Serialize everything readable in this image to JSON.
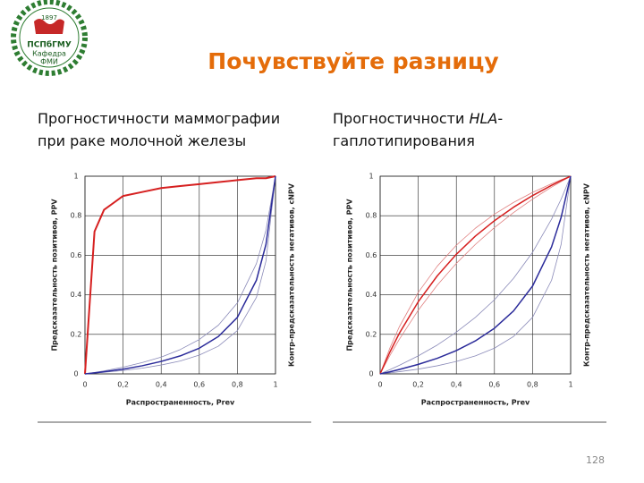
{
  "title": "Почувствуйте разницу",
  "logo": {
    "year": "1897",
    "lines": [
      "ПСПбГМУ",
      "Кафедра",
      "ФМИ"
    ]
  },
  "page_number": "128",
  "chart_data": [
    {
      "type": "line",
      "subtitle": [
        [
          "Прогностичности маммографии"
        ],
        [
          "при раке молочной железы"
        ]
      ],
      "xlabel": "Распространенность, Prev",
      "ylabel": "Предсказательность позитивов, PPV",
      "y2label": "Контр-предсказательность негативов, cNPV",
      "x": [
        0,
        0.05,
        0.1,
        0.2,
        0.3,
        0.4,
        0.5,
        0.6,
        0.7,
        0.8,
        0.9,
        0.95,
        1
      ],
      "xlim": [
        0,
        1
      ],
      "ylim": [
        0,
        1
      ],
      "xticks": [
        0,
        {
          "value": 0.2,
          "label": "0,2"
        },
        {
          "value": 0.4,
          "label": "0,4"
        },
        {
          "value": 0.6,
          "label": "0,6"
        },
        {
          "value": 0.8,
          "label": "0,8"
        },
        1
      ],
      "yticks": [
        0,
        0.2,
        0.4,
        0.6,
        0.8,
        1
      ],
      "grid": true,
      "series": [
        {
          "color": "#d62020",
          "width": 2,
          "values": [
            0,
            0.72,
            0.83,
            0.9,
            0.92,
            0.94,
            0.95,
            0.96,
            0.97,
            0.98,
            0.99,
            0.99,
            1
          ]
        },
        {
          "color": "#8a8ab8",
          "width": 0.8,
          "values": [
            0,
            0.007,
            0.015,
            0.034,
            0.057,
            0.085,
            0.123,
            0.174,
            0.246,
            0.359,
            0.558,
            0.727,
            1
          ]
        },
        {
          "color": "#8a8ab8",
          "width": 0.8,
          "values": [
            0,
            0.004,
            0.008,
            0.017,
            0.029,
            0.045,
            0.065,
            0.095,
            0.14,
            0.219,
            0.387,
            0.571,
            1
          ]
        },
        {
          "color": "#2b2b9a",
          "width": 1.5,
          "values": [
            0,
            0.005,
            0.011,
            0.024,
            0.041,
            0.063,
            0.091,
            0.13,
            0.189,
            0.286,
            0.474,
            0.655,
            1
          ]
        }
      ]
    },
    {
      "type": "line",
      "subtitle": [
        [
          "Прогностичности ",
          "HLA",
          "-"
        ],
        [
          "гаплотипирования"
        ]
      ],
      "xlabel": "Распространенность, Prev",
      "ylabel": "Предсказательность позитивов, PPV",
      "y2label": "Контр-предсказательность негативов, cNPV",
      "x": [
        0,
        0.05,
        0.1,
        0.2,
        0.3,
        0.4,
        0.5,
        0.6,
        0.7,
        0.8,
        0.9,
        0.95,
        1
      ],
      "xlim": [
        0,
        1
      ],
      "ylim": [
        0,
        1
      ],
      "xticks": [
        0,
        {
          "value": 0.2,
          "label": "0,2"
        },
        {
          "value": 0.4,
          "label": "0,4"
        },
        {
          "value": 0.6,
          "label": "0,6"
        },
        {
          "value": 0.8,
          "label": "0,8"
        },
        1
      ],
      "yticks": [
        0,
        0.2,
        0.4,
        0.6,
        0.8,
        1
      ],
      "grid": true,
      "series": [
        {
          "color": "#e08080",
          "width": 0.8,
          "values": [
            0,
            0.128,
            0.237,
            0.412,
            0.545,
            0.651,
            0.737,
            0.808,
            0.867,
            0.918,
            0.962,
            0.982,
            1
          ]
        },
        {
          "color": "#e08080",
          "width": 0.8,
          "values": [
            0,
            0.091,
            0.174,
            0.322,
            0.449,
            0.559,
            0.655,
            0.74,
            0.816,
            0.884,
            0.945,
            0.973,
            1
          ]
        },
        {
          "color": "#d62020",
          "width": 1.5,
          "values": [
            0,
            0.108,
            0.204,
            0.365,
            0.496,
            0.605,
            0.697,
            0.775,
            0.843,
            0.902,
            0.954,
            0.978,
            1
          ]
        },
        {
          "color": "#8a8ab8",
          "width": 0.8,
          "values": [
            0,
            0.021,
            0.043,
            0.091,
            0.146,
            0.211,
            0.286,
            0.375,
            0.483,
            0.615,
            0.783,
            0.884,
            1
          ]
        },
        {
          "color": "#8a8ab8",
          "width": 0.8,
          "values": [
            0,
            0.005,
            0.011,
            0.024,
            0.041,
            0.063,
            0.091,
            0.13,
            0.189,
            0.286,
            0.474,
            0.655,
            1
          ]
        },
        {
          "color": "#2b2b9a",
          "width": 1.5,
          "values": [
            0,
            0.01,
            0.022,
            0.048,
            0.079,
            0.118,
            0.167,
            0.231,
            0.318,
            0.444,
            0.643,
            0.792,
            1
          ]
        }
      ]
    }
  ]
}
